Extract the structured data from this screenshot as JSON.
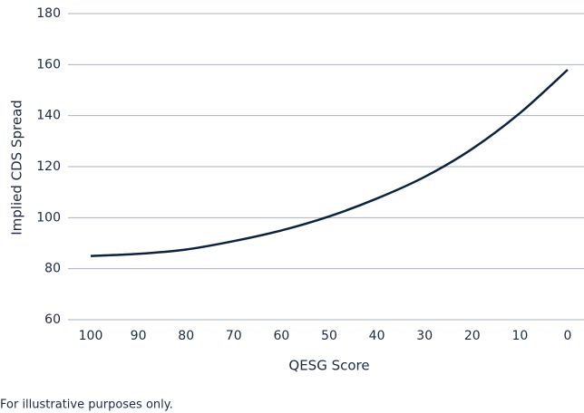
{
  "chart_data": {
    "type": "line",
    "x": [
      100,
      90,
      80,
      70,
      60,
      50,
      40,
      30,
      20,
      10,
      0
    ],
    "series": [
      {
        "color": "#0d2240",
        "values": [
          85,
          85.8,
          87.5,
          90.8,
          95,
          100.5,
          107.5,
          116,
          127,
          141,
          158
        ]
      }
    ],
    "xlim": [
      100,
      0
    ],
    "xticks": [
      100,
      90,
      80,
      70,
      60,
      50,
      40,
      30,
      20,
      10,
      0
    ],
    "ylim": [
      60,
      180
    ],
    "yticks": [
      60,
      80,
      100,
      120,
      140,
      160,
      180
    ],
    "xlabel": "QESG Score",
    "ylabel": "Implied CDS Spread",
    "footnote": "For illustrative purposes only.",
    "grid": true
  }
}
